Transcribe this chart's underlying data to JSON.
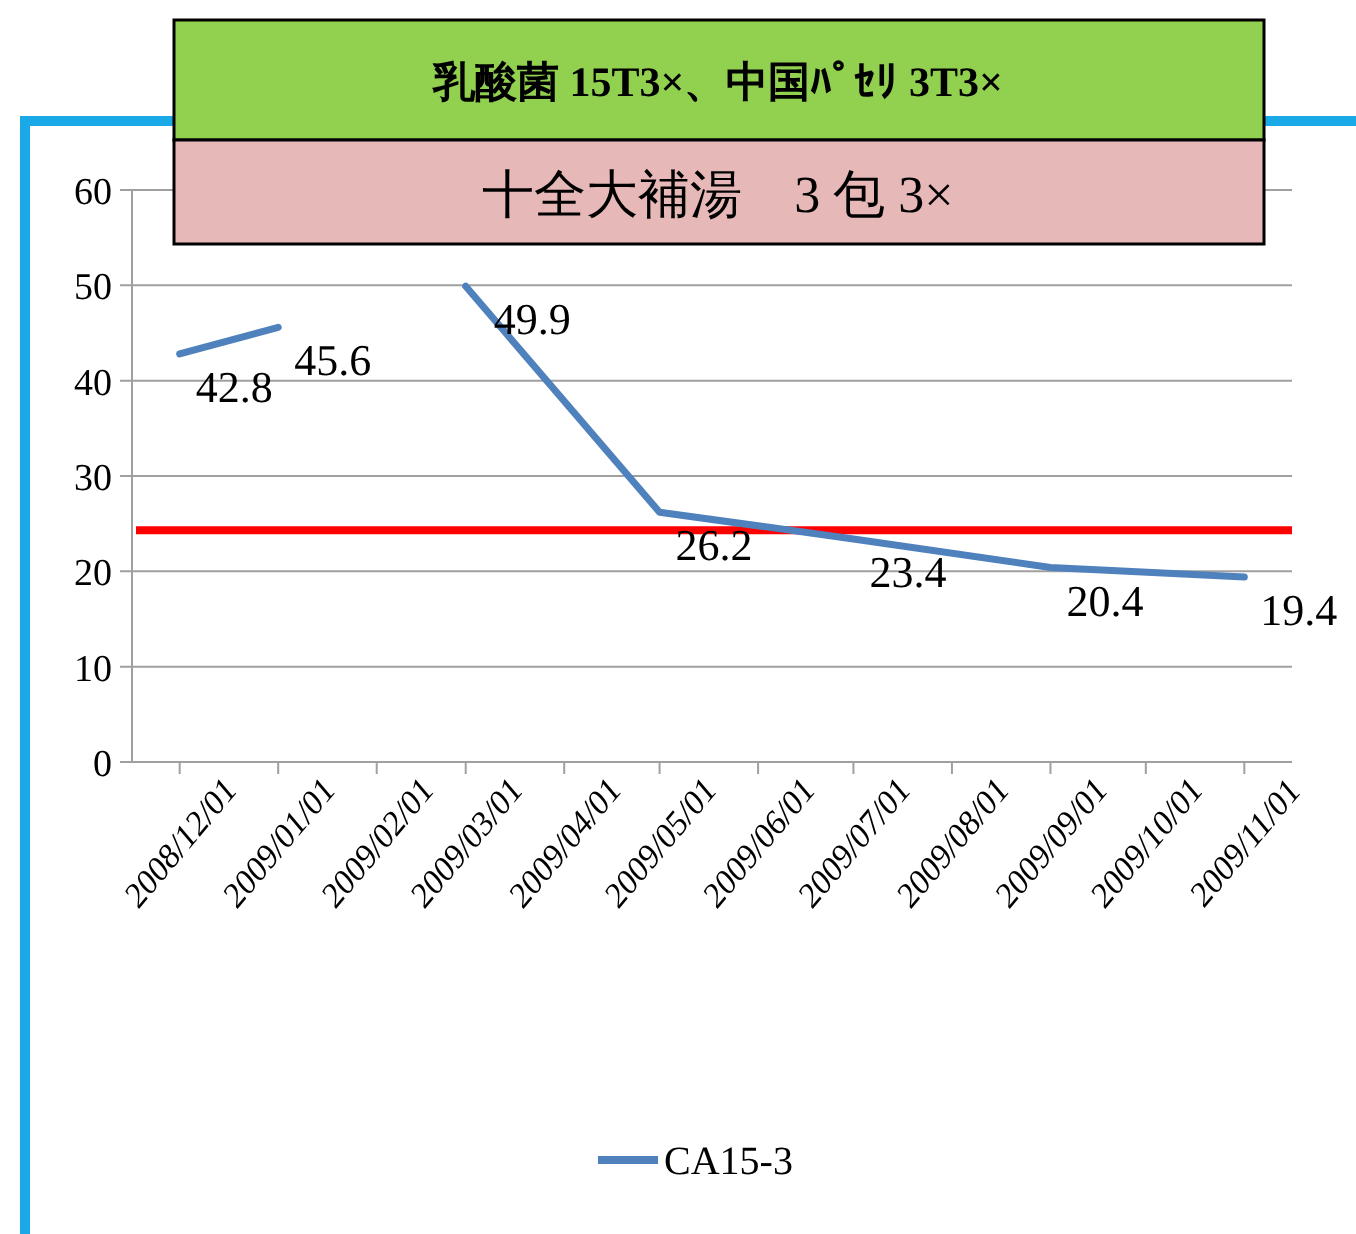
{
  "chart_data": {
    "type": "line",
    "title": "乳酸菌 15T3×、中国ﾊﾟｾﾘ 3T3×",
    "subtitle": "十全大補湯　3 包 3×",
    "x": [
      "2008-12-01",
      "2009-01-01",
      "2009-02-01",
      "2009-03-01",
      "2009-05-01",
      "2009-07-01",
      "2009-09-01",
      "2009-11-01"
    ],
    "series": [
      {
        "name": "CA15-3",
        "color": "#4f81bd",
        "values": [
          42.8,
          45.6,
          null,
          49.9,
          26.2,
          23.4,
          20.4,
          19.4
        ]
      }
    ],
    "xlim": [
      "2008-11-16",
      "2009-11-16"
    ],
    "xticks": [
      {
        "value": "2008-12-01",
        "label": "2008/12/01"
      },
      {
        "value": "2009-01-01",
        "label": "2009/01/01"
      },
      {
        "value": "2009-02-01",
        "label": "2009/02/01"
      },
      {
        "value": "2009-03-01",
        "label": "2009/03/01"
      },
      {
        "value": "2009-04-01",
        "label": "2009/04/01"
      },
      {
        "value": "2009-05-01",
        "label": "2009/05/01"
      },
      {
        "value": "2009-06-01",
        "label": "2009/06/01"
      },
      {
        "value": "2009-07-01",
        "label": "2009/07/01"
      },
      {
        "value": "2009-08-01",
        "label": "2009/08/01"
      },
      {
        "value": "2009-09-01",
        "label": "2009/09/01"
      },
      {
        "value": "2009-10-01",
        "label": "2009/10/01"
      },
      {
        "value": "2009-11-01",
        "label": "2009/11/01"
      }
    ],
    "ylim": [
      0,
      60
    ],
    "yticks": [
      0,
      10,
      20,
      30,
      40,
      50,
      60
    ],
    "grid": "y",
    "legend": "bottom",
    "data_labels": true,
    "ref_lines": [
      {
        "axis": "y",
        "value": 24.3,
        "color": "#ff0000"
      }
    ]
  }
}
